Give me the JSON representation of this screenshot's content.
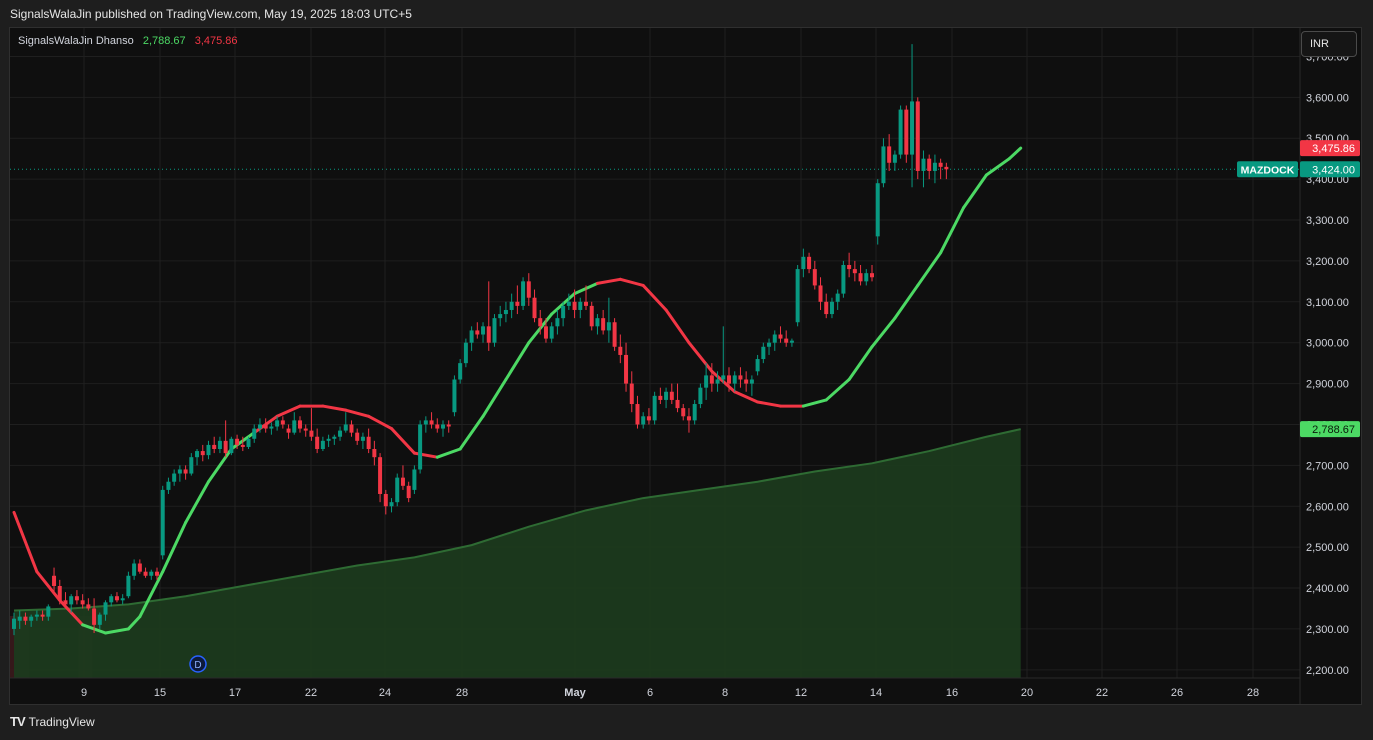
{
  "header": {
    "text": "SignalsWalaJin published on TradingView.com, May 19, 2025 18:03 UTC+5"
  },
  "indicator_legend": {
    "name": "SignalsWalaJin Dhanso",
    "value_green": "2,788.67",
    "value_red": "3,475.86"
  },
  "currency_button": {
    "label": "INR"
  },
  "footer": {
    "logo_text": "TradingView",
    "logo_mark": "TV"
  },
  "price_tags": {
    "red": {
      "label": "3,475.86",
      "value": 3475.86,
      "color": "#f23645"
    },
    "symbol": {
      "name": "MAZDOCK",
      "label": "3,424.00",
      "value": 3424,
      "color": "#089981"
    },
    "green": {
      "label": "2,788.67",
      "value": 2788.67,
      "color": "#4cd964"
    }
  },
  "marker": {
    "label": "D"
  },
  "colors": {
    "up": "#089981",
    "down": "#f23645",
    "trend_up": "#4cd964",
    "trend_down": "#f23645",
    "area_fill": "#1c3a1e",
    "area_line": "#2e6b33",
    "grid": "#1f1f1f"
  },
  "chart_data": {
    "type": "candlestick",
    "symbol": "MAZDOCK",
    "currency": "INR",
    "ylim": [
      2180,
      3750
    ],
    "y_ticks": [
      "2,200.00",
      "2,300.00",
      "2,400.00",
      "2,500.00",
      "2,600.00",
      "2,700.00",
      "2,800.00",
      "2,900.00",
      "3,000.00",
      "3,100.00",
      "3,200.00",
      "3,300.00",
      "3,400.00",
      "3,500.00",
      "3,600.00",
      "3,700.00"
    ],
    "x_ticks": [
      "9",
      "15",
      "17",
      "22",
      "24",
      "28",
      "May",
      "6",
      "8",
      "12",
      "14",
      "16",
      "20",
      "22",
      "26",
      "28"
    ],
    "ohlc": [
      [
        2300,
        2340,
        2285,
        2325
      ],
      [
        2320,
        2345,
        2300,
        2330
      ],
      [
        2330,
        2340,
        2310,
        2320
      ],
      [
        2320,
        2335,
        2305,
        2330
      ],
      [
        2330,
        2345,
        2320,
        2335
      ],
      [
        2335,
        2345,
        2320,
        2330
      ],
      [
        2330,
        2360,
        2320,
        2355
      ],
      [
        2430,
        2450,
        2390,
        2405
      ],
      [
        2405,
        2420,
        2360,
        2370
      ],
      [
        2370,
        2390,
        2350,
        2360
      ],
      [
        2360,
        2385,
        2340,
        2380
      ],
      [
        2380,
        2395,
        2360,
        2370
      ],
      [
        2370,
        2385,
        2350,
        2360
      ],
      [
        2360,
        2375,
        2345,
        2350
      ],
      [
        2350,
        2375,
        2290,
        2310
      ],
      [
        2310,
        2340,
        2300,
        2335
      ],
      [
        2335,
        2370,
        2320,
        2365
      ],
      [
        2365,
        2385,
        2355,
        2380
      ],
      [
        2380,
        2390,
        2365,
        2370
      ],
      [
        2370,
        2385,
        2360,
        2375
      ],
      [
        2380,
        2440,
        2375,
        2430
      ],
      [
        2430,
        2470,
        2420,
        2460
      ],
      [
        2460,
        2470,
        2435,
        2440
      ],
      [
        2440,
        2450,
        2425,
        2430
      ],
      [
        2430,
        2445,
        2420,
        2440
      ],
      [
        2440,
        2450,
        2420,
        2430
      ],
      [
        2480,
        2650,
        2470,
        2640
      ],
      [
        2640,
        2670,
        2630,
        2660
      ],
      [
        2660,
        2690,
        2650,
        2680
      ],
      [
        2680,
        2700,
        2660,
        2690
      ],
      [
        2690,
        2700,
        2665,
        2680
      ],
      [
        2680,
        2730,
        2675,
        2720
      ],
      [
        2720,
        2740,
        2700,
        2735
      ],
      [
        2735,
        2750,
        2710,
        2725
      ],
      [
        2725,
        2760,
        2715,
        2750
      ],
      [
        2750,
        2770,
        2730,
        2740
      ],
      [
        2740,
        2770,
        2730,
        2760
      ],
      [
        2760,
        2810,
        2720,
        2730
      ],
      [
        2730,
        2770,
        2725,
        2765
      ],
      [
        2765,
        2775,
        2740,
        2750
      ],
      [
        2750,
        2770,
        2735,
        2745
      ],
      [
        2745,
        2770,
        2740,
        2765
      ],
      [
        2765,
        2800,
        2755,
        2790
      ],
      [
        2790,
        2815,
        2780,
        2800
      ],
      [
        2800,
        2815,
        2780,
        2790
      ],
      [
        2790,
        2805,
        2775,
        2795
      ],
      [
        2795,
        2820,
        2785,
        2810
      ],
      [
        2810,
        2820,
        2790,
        2800
      ],
      [
        2790,
        2800,
        2765,
        2780
      ],
      [
        2780,
        2830,
        2775,
        2810
      ],
      [
        2810,
        2820,
        2780,
        2790
      ],
      [
        2790,
        2800,
        2770,
        2785
      ],
      [
        2785,
        2840,
        2760,
        2770
      ],
      [
        2770,
        2790,
        2730,
        2740
      ],
      [
        2740,
        2770,
        2735,
        2760
      ],
      [
        2760,
        2775,
        2745,
        2765
      ],
      [
        2765,
        2775,
        2750,
        2770
      ],
      [
        2770,
        2795,
        2760,
        2785
      ],
      [
        2785,
        2830,
        2780,
        2800
      ],
      [
        2800,
        2810,
        2770,
        2780
      ],
      [
        2780,
        2790,
        2750,
        2760
      ],
      [
        2760,
        2780,
        2740,
        2770
      ],
      [
        2770,
        2790,
        2730,
        2740
      ],
      [
        2740,
        2760,
        2700,
        2720
      ],
      [
        2720,
        2730,
        2610,
        2630
      ],
      [
        2630,
        2640,
        2580,
        2600
      ],
      [
        2600,
        2620,
        2585,
        2610
      ],
      [
        2610,
        2680,
        2600,
        2670
      ],
      [
        2670,
        2700,
        2640,
        2650
      ],
      [
        2650,
        2660,
        2610,
        2620
      ],
      [
        2640,
        2700,
        2630,
        2690
      ],
      [
        2690,
        2810,
        2680,
        2800
      ],
      [
        2800,
        2820,
        2780,
        2810
      ],
      [
        2810,
        2830,
        2790,
        2800
      ],
      [
        2800,
        2815,
        2780,
        2790
      ],
      [
        2790,
        2810,
        2770,
        2800
      ],
      [
        2800,
        2810,
        2780,
        2795
      ],
      [
        2830,
        2920,
        2820,
        2910
      ],
      [
        2910,
        2960,
        2900,
        2950
      ],
      [
        2950,
        3010,
        2940,
        3000
      ],
      [
        3000,
        3040,
        2980,
        3030
      ],
      [
        3030,
        3050,
        3010,
        3020
      ],
      [
        3020,
        3050,
        3000,
        3040
      ],
      [
        3040,
        3150,
        2980,
        3000
      ],
      [
        3000,
        3070,
        2990,
        3060
      ],
      [
        3060,
        3090,
        3040,
        3070
      ],
      [
        3070,
        3100,
        3050,
        3080
      ],
      [
        3080,
        3120,
        3060,
        3100
      ],
      [
        3100,
        3140,
        3070,
        3090
      ],
      [
        3090,
        3160,
        3080,
        3150
      ],
      [
        3150,
        3170,
        3090,
        3110
      ],
      [
        3110,
        3130,
        3050,
        3060
      ],
      [
        3060,
        3080,
        3020,
        3040
      ],
      [
        3040,
        3060,
        3000,
        3010
      ],
      [
        3010,
        3050,
        3000,
        3040
      ],
      [
        3040,
        3080,
        3020,
        3060
      ],
      [
        3060,
        3100,
        3040,
        3090
      ],
      [
        3090,
        3120,
        3080,
        3100
      ],
      [
        3100,
        3130,
        3060,
        3080
      ],
      [
        3080,
        3110,
        3060,
        3100
      ],
      [
        3100,
        3140,
        3080,
        3090
      ],
      [
        3090,
        3100,
        3030,
        3040
      ],
      [
        3040,
        3070,
        3020,
        3060
      ],
      [
        3060,
        3080,
        3020,
        3030
      ],
      [
        3030,
        3110,
        3000,
        3050
      ],
      [
        3050,
        3060,
        2980,
        2990
      ],
      [
        2990,
        3020,
        2950,
        2970
      ],
      [
        2970,
        3000,
        2880,
        2900
      ],
      [
        2900,
        2930,
        2830,
        2850
      ],
      [
        2850,
        2870,
        2790,
        2800
      ],
      [
        2800,
        2830,
        2790,
        2820
      ],
      [
        2820,
        2840,
        2800,
        2810
      ],
      [
        2810,
        2880,
        2800,
        2870
      ],
      [
        2870,
        2890,
        2850,
        2860
      ],
      [
        2860,
        2890,
        2840,
        2880
      ],
      [
        2880,
        2900,
        2850,
        2860
      ],
      [
        2860,
        2900,
        2830,
        2840
      ],
      [
        2840,
        2850,
        2810,
        2820
      ],
      [
        2820,
        2840,
        2780,
        2810
      ],
      [
        2810,
        2860,
        2800,
        2850
      ],
      [
        2850,
        2900,
        2840,
        2890
      ],
      [
        2890,
        2950,
        2860,
        2920
      ],
      [
        2920,
        2950,
        2880,
        2900
      ],
      [
        2900,
        2930,
        2880,
        2910
      ],
      [
        2910,
        3040,
        2900,
        2920
      ],
      [
        2920,
        2940,
        2880,
        2900
      ],
      [
        2900,
        2930,
        2880,
        2920
      ],
      [
        2920,
        2940,
        2890,
        2910
      ],
      [
        2910,
        2930,
        2880,
        2900
      ],
      [
        2900,
        2920,
        2870,
        2910
      ],
      [
        2930,
        2970,
        2920,
        2960
      ],
      [
        2960,
        3000,
        2950,
        2990
      ],
      [
        2990,
        3010,
        2970,
        3000
      ],
      [
        3000,
        3030,
        2980,
        3020
      ],
      [
        3020,
        3040,
        3000,
        3010
      ],
      [
        3010,
        3030,
        2990,
        3000
      ],
      [
        3000,
        3010,
        2990,
        3005
      ],
      [
        3050,
        3190,
        3040,
        3180
      ],
      [
        3180,
        3230,
        3160,
        3210
      ],
      [
        3210,
        3220,
        3170,
        3180
      ],
      [
        3180,
        3200,
        3130,
        3140
      ],
      [
        3140,
        3160,
        3080,
        3100
      ],
      [
        3100,
        3120,
        3060,
        3070
      ],
      [
        3070,
        3110,
        3060,
        3100
      ],
      [
        3100,
        3130,
        3080,
        3120
      ],
      [
        3120,
        3200,
        3110,
        3190
      ],
      [
        3190,
        3220,
        3160,
        3180
      ],
      [
        3180,
        3200,
        3150,
        3170
      ],
      [
        3170,
        3190,
        3140,
        3150
      ],
      [
        3150,
        3180,
        3140,
        3170
      ],
      [
        3170,
        3190,
        3150,
        3160
      ],
      [
        3260,
        3400,
        3240,
        3390
      ],
      [
        3390,
        3500,
        3380,
        3480
      ],
      [
        3480,
        3510,
        3420,
        3440
      ],
      [
        3440,
        3470,
        3420,
        3460
      ],
      [
        3460,
        3580,
        3450,
        3570
      ],
      [
        3570,
        3580,
        3440,
        3460
      ],
      [
        3460,
        3730,
        3380,
        3590
      ],
      [
        3590,
        3600,
        3400,
        3420
      ],
      [
        3420,
        3470,
        3380,
        3450
      ],
      [
        3450,
        3460,
        3400,
        3420
      ],
      [
        3420,
        3460,
        3390,
        3440
      ],
      [
        3440,
        3450,
        3400,
        3430
      ],
      [
        3430,
        3440,
        3400,
        3424
      ]
    ],
    "trend_line": [
      [
        0,
        2585
      ],
      [
        4,
        2440
      ],
      [
        8,
        2370
      ],
      [
        12,
        2310
      ],
      [
        16,
        2290
      ],
      [
        20,
        2300
      ],
      [
        22,
        2330
      ],
      [
        26,
        2440
      ],
      [
        30,
        2560
      ],
      [
        34,
        2660
      ],
      [
        38,
        2740
      ],
      [
        42,
        2780
      ],
      [
        46,
        2820
      ],
      [
        50,
        2845
      ],
      [
        54,
        2845
      ],
      [
        58,
        2835
      ],
      [
        62,
        2820
      ],
      [
        66,
        2790
      ],
      [
        70,
        2730
      ],
      [
        74,
        2720
      ],
      [
        78,
        2740
      ],
      [
        82,
        2820
      ],
      [
        86,
        2910
      ],
      [
        90,
        3000
      ],
      [
        94,
        3070
      ],
      [
        98,
        3120
      ],
      [
        102,
        3145
      ],
      [
        106,
        3155
      ],
      [
        110,
        3140
      ],
      [
        114,
        3080
      ],
      [
        118,
        3000
      ],
      [
        122,
        2930
      ],
      [
        126,
        2880
      ],
      [
        130,
        2855
      ],
      [
        134,
        2845
      ],
      [
        138,
        2845
      ],
      [
        142,
        2860
      ],
      [
        146,
        2910
      ],
      [
        150,
        2990
      ],
      [
        154,
        3060
      ],
      [
        158,
        3140
      ],
      [
        162,
        3220
      ],
      [
        166,
        3330
      ],
      [
        170,
        3410
      ],
      [
        174,
        3450
      ],
      [
        176,
        3475.86
      ]
    ],
    "trend_up_ranges": [
      [
        12,
        40
      ],
      [
        74,
        100
      ],
      [
        138,
        176
      ]
    ],
    "baseline_area": [
      [
        0,
        2345
      ],
      [
        10,
        2350
      ],
      [
        20,
        2360
      ],
      [
        30,
        2380
      ],
      [
        40,
        2405
      ],
      [
        50,
        2430
      ],
      [
        60,
        2455
      ],
      [
        70,
        2475
      ],
      [
        80,
        2505
      ],
      [
        90,
        2550
      ],
      [
        100,
        2590
      ],
      [
        110,
        2620
      ],
      [
        120,
        2640
      ],
      [
        130,
        2660
      ],
      [
        140,
        2685
      ],
      [
        150,
        2705
      ],
      [
        160,
        2735
      ],
      [
        170,
        2770
      ],
      [
        176,
        2788.67
      ]
    ],
    "bg_bands": [
      [
        0,
        2
      ],
      [
        12,
        13
      ]
    ]
  }
}
